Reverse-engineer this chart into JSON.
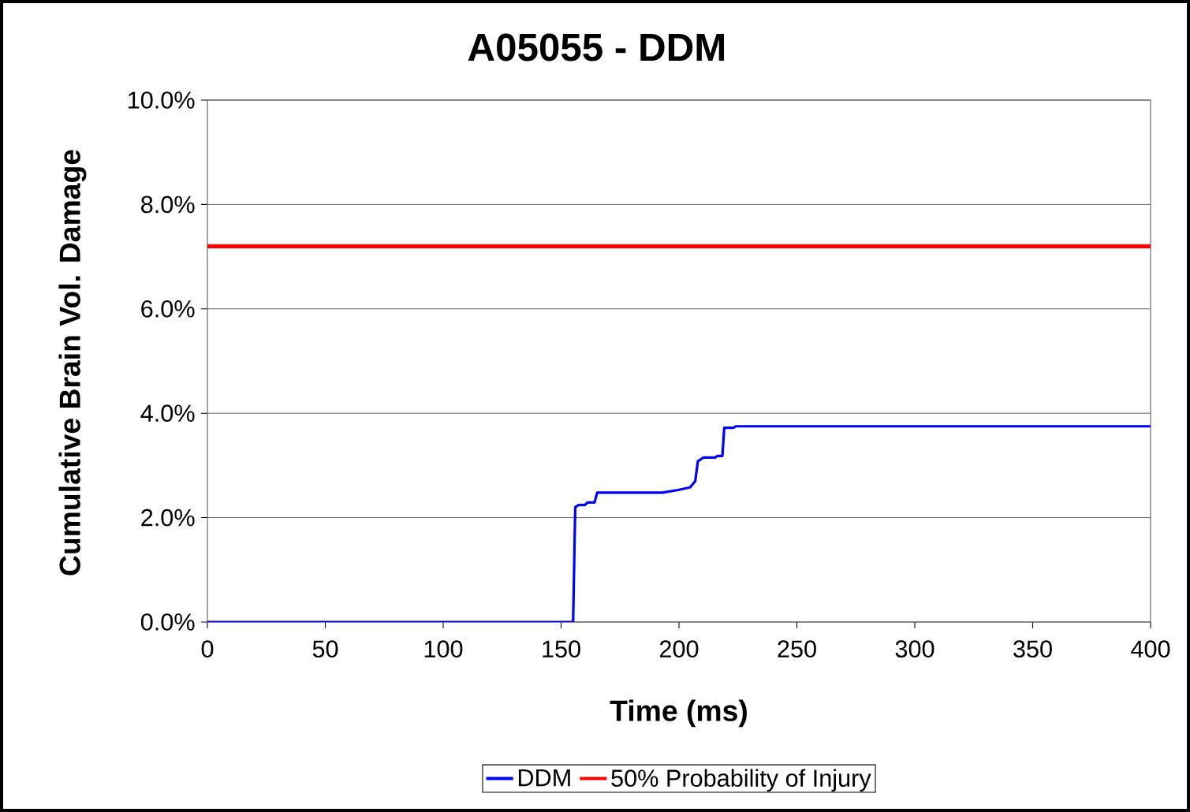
{
  "chart_data": {
    "type": "line",
    "title": "A05055 - DDM",
    "xlabel": "Time (ms)",
    "ylabel": "Cumulative Brain Vol. Damage",
    "series": [
      {
        "name": "DDM",
        "color": "#0000ff",
        "x": [
          0,
          155.1,
          156.0,
          157.3,
          160.1,
          161.2,
          164.2,
          165.3,
          193.0,
          199.7,
          204.7,
          206.9,
          208.0,
          210.3,
          215.3,
          216.2,
          218.4,
          219.2,
          223.1,
          224.2,
          400
        ],
        "values": [
          0,
          0,
          2.2,
          2.24,
          2.24,
          2.29,
          2.29,
          2.48,
          2.48,
          2.53,
          2.58,
          2.7,
          3.08,
          3.15,
          3.15,
          3.18,
          3.18,
          3.72,
          3.72,
          3.75,
          3.75
        ]
      },
      {
        "name": "50% Probability of Injury",
        "color": "#ff0000",
        "x": [
          0,
          400
        ],
        "values": [
          7.2,
          7.2
        ]
      }
    ],
    "xlim": [
      0,
      400
    ],
    "xticks": [
      0,
      50,
      100,
      150,
      200,
      250,
      300,
      350,
      400
    ],
    "ylim": [
      0,
      10
    ],
    "yticks": [
      {
        "value": 0,
        "label": "0.0%"
      },
      {
        "value": 2,
        "label": "2.0%"
      },
      {
        "value": 4,
        "label": "4.0%"
      },
      {
        "value": 6,
        "label": "6.0%"
      },
      {
        "value": 8,
        "label": "8.0%"
      },
      {
        "value": 10,
        "label": "10.0%"
      }
    ],
    "grid": "y",
    "legend": "bottom",
    "marker": "none",
    "line_style": "solid"
  }
}
